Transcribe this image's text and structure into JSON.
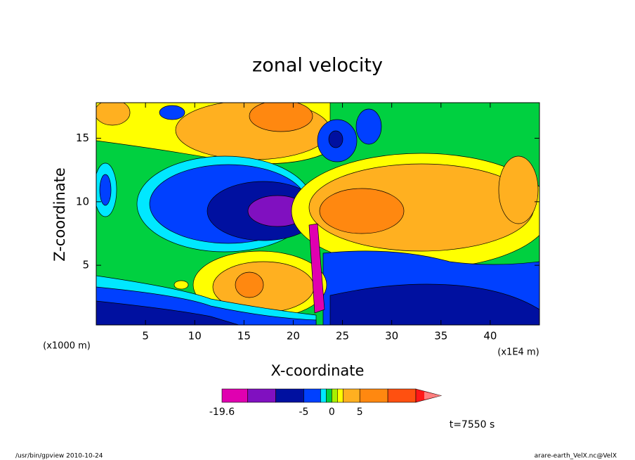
{
  "chart_data": {
    "type": "contour",
    "title": "zonal velocity",
    "xlabel": "X-coordinate",
    "ylabel": "Z-coordinate",
    "x_unit": "(x1000 m)",
    "x_unit_right": "(x1E4 m)",
    "xlim": [
      0,
      45
    ],
    "xticks": [
      5,
      10,
      15,
      20,
      25,
      30,
      35,
      40
    ],
    "ylim": [
      0.3,
      17.8
    ],
    "yticks": [
      5,
      10,
      15
    ],
    "colorbar": {
      "levels": [
        -19.6,
        -15,
        -10,
        -5,
        -2,
        -1,
        0,
        1,
        2,
        5,
        10,
        15
      ],
      "colors": [
        "#e000b0",
        "#8010c0",
        "#0010a0",
        "#0040ff",
        "#00e8ff",
        "#00d040",
        "#a8f000",
        "#ffff00",
        "#ffb020",
        "#ff8810",
        "#ff5010",
        "#ff1818"
      ],
      "extend_color": "#ff8080",
      "ticks": [
        -19.6,
        -5,
        0,
        5
      ]
    },
    "time_label": "t=7550 s",
    "footer_left": "/usr/bin/gpview  2010-10-24",
    "footer_right": "arare-earth_VelX.nc@VelX"
  }
}
